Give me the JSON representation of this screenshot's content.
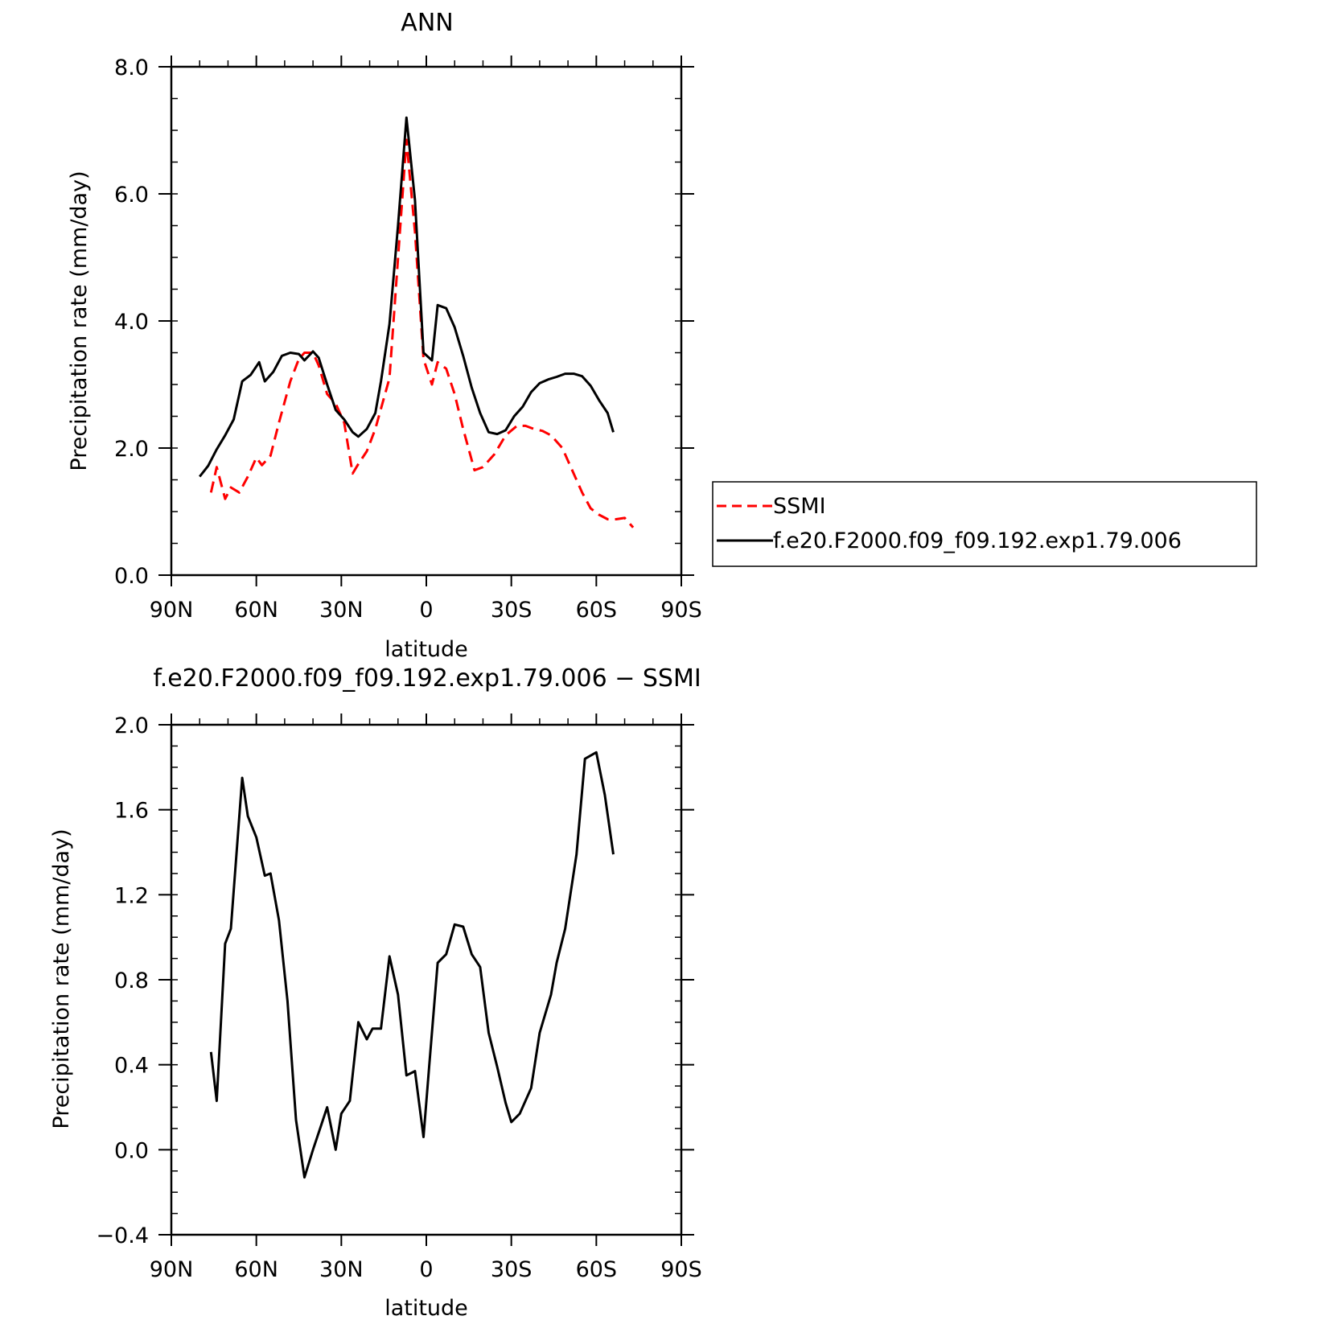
{
  "chart_data": [
    {
      "type": "line",
      "title": "ANN",
      "xlabel": "latitude",
      "ylabel": "Precipitation rate (mm/day)",
      "xlim": [
        -90,
        90
      ],
      "ylim": [
        0,
        8
      ],
      "x_ticks": [
        {
          "value": -90,
          "label": "90N"
        },
        {
          "value": -60,
          "label": "60N"
        },
        {
          "value": -30,
          "label": "30N"
        },
        {
          "value": 0,
          "label": "0"
        },
        {
          "value": 30,
          "label": "30S"
        },
        {
          "value": 60,
          "label": "60S"
        },
        {
          "value": 90,
          "label": "90S"
        }
      ],
      "y_ticks": [
        {
          "value": 0,
          "label": "0.0"
        },
        {
          "value": 2,
          "label": "2.0"
        },
        {
          "value": 4,
          "label": "4.0"
        },
        {
          "value": 6,
          "label": "6.0"
        },
        {
          "value": 8,
          "label": "8.0"
        }
      ],
      "legend_position": "right",
      "series": [
        {
          "name": "SSMI",
          "color": "#ff0000",
          "dash": "dashed",
          "x": [
            -76,
            -74,
            -71,
            -69,
            -66,
            -63,
            -60,
            -58,
            -55,
            -52,
            -48,
            -45,
            -43,
            -40,
            -38,
            -35,
            -32,
            -29,
            -26,
            -24,
            -21,
            -18,
            -13,
            -7,
            -4,
            -1,
            2,
            4,
            7,
            10,
            13,
            17,
            20,
            24,
            28,
            32,
            35,
            38,
            41,
            44,
            48,
            51,
            55,
            58,
            61,
            64,
            67,
            70,
            73
          ],
          "y": [
            1.3,
            1.7,
            1.2,
            1.38,
            1.3,
            1.55,
            1.85,
            1.73,
            1.88,
            2.4,
            3.05,
            3.4,
            3.5,
            3.5,
            3.3,
            2.85,
            2.7,
            2.4,
            1.6,
            1.75,
            1.95,
            2.3,
            3.1,
            6.85,
            5.4,
            3.4,
            3.0,
            3.35,
            3.25,
            2.85,
            2.3,
            1.65,
            1.7,
            1.9,
            2.2,
            2.35,
            2.35,
            2.3,
            2.27,
            2.2,
            2.0,
            1.7,
            1.3,
            1.05,
            0.95,
            0.88,
            0.88,
            0.9,
            0.75
          ]
        },
        {
          "name": "f.e20.F2000.f09_f09.192.exp1.79.006",
          "color": "#000000",
          "dash": "solid",
          "x": [
            -80,
            -77,
            -74,
            -71,
            -68,
            -65,
            -62,
            -59,
            -57,
            -54,
            -51,
            -48,
            -45,
            -43,
            -40,
            -38,
            -35,
            -32,
            -29,
            -26,
            -24,
            -21,
            -18,
            -16,
            -13,
            -10,
            -7,
            -4,
            -1,
            2,
            4,
            7,
            10,
            13,
            16,
            19,
            22,
            25,
            28,
            31,
            34,
            37,
            40,
            43,
            46,
            49,
            52,
            55,
            58,
            61,
            64,
            66
          ],
          "y": [
            1.55,
            1.72,
            1.98,
            2.2,
            2.45,
            3.05,
            3.15,
            3.35,
            3.05,
            3.2,
            3.45,
            3.5,
            3.48,
            3.38,
            3.52,
            3.42,
            3.0,
            2.6,
            2.45,
            2.25,
            2.18,
            2.3,
            2.55,
            3.05,
            3.95,
            5.5,
            7.2,
            5.9,
            3.5,
            3.38,
            4.25,
            4.2,
            3.9,
            3.45,
            2.95,
            2.55,
            2.25,
            2.22,
            2.28,
            2.5,
            2.65,
            2.88,
            3.02,
            3.08,
            3.12,
            3.17,
            3.17,
            3.13,
            2.98,
            2.75,
            2.55,
            2.25
          ]
        }
      ]
    },
    {
      "type": "line",
      "title": "f.e20.F2000.f09_f09.192.exp1.79.006 − SSMI",
      "xlabel": "latitude",
      "ylabel": "Precipitation rate (mm/day)",
      "xlim": [
        -90,
        90
      ],
      "ylim": [
        -0.4,
        2.0
      ],
      "x_ticks": [
        {
          "value": -90,
          "label": "90N"
        },
        {
          "value": -60,
          "label": "60N"
        },
        {
          "value": -30,
          "label": "30N"
        },
        {
          "value": 0,
          "label": "0"
        },
        {
          "value": 30,
          "label": "30S"
        },
        {
          "value": 60,
          "label": "60S"
        },
        {
          "value": 90,
          "label": "90S"
        }
      ],
      "y_ticks": [
        {
          "value": -0.4,
          "label": "−0.4"
        },
        {
          "value": 0.0,
          "label": "0.0"
        },
        {
          "value": 0.4,
          "label": "0.4"
        },
        {
          "value": 0.8,
          "label": "0.8"
        },
        {
          "value": 1.2,
          "label": "1.2"
        },
        {
          "value": 1.6,
          "label": "1.6"
        },
        {
          "value": 2.0,
          "label": "2.0"
        }
      ],
      "series": [
        {
          "color": "#000000",
          "dash": "solid",
          "x": [
            -76,
            -74,
            -71,
            -69,
            -65,
            -63,
            -60,
            -57,
            -55,
            -52,
            -49,
            -46,
            -43,
            -40,
            -37,
            -35,
            -32,
            -30,
            -27,
            -24,
            -21,
            -19,
            -16,
            -13,
            -10,
            -7,
            -4,
            -1,
            1,
            4,
            7,
            10,
            13,
            16,
            19,
            22,
            25,
            28,
            30,
            33,
            37,
            40,
            44,
            46,
            49,
            53,
            56,
            60,
            63,
            66
          ],
          "y": [
            0.46,
            0.23,
            0.97,
            1.04,
            1.75,
            1.57,
            1.47,
            1.29,
            1.3,
            1.08,
            0.7,
            0.14,
            -0.13,
            0.0,
            0.12,
            0.2,
            0.0,
            0.17,
            0.23,
            0.6,
            0.52,
            0.57,
            0.57,
            0.91,
            0.73,
            0.35,
            0.37,
            0.06,
            0.39,
            0.88,
            0.92,
            1.06,
            1.05,
            0.92,
            0.86,
            0.55,
            0.39,
            0.22,
            0.13,
            0.17,
            0.29,
            0.55,
            0.73,
            0.88,
            1.04,
            1.39,
            1.84,
            1.87,
            1.67,
            1.39
          ]
        }
      ]
    }
  ]
}
